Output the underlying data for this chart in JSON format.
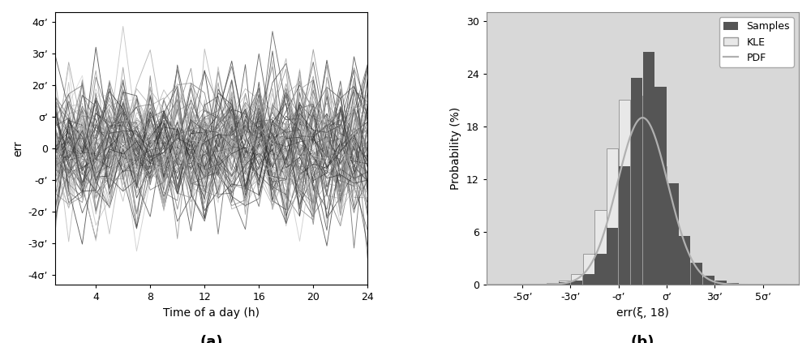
{
  "panel_a": {
    "n_samples": 100,
    "n_time": 24,
    "yticks": [
      -4,
      -3,
      -2,
      -1,
      0,
      1,
      2,
      3,
      4
    ],
    "ytick_labels": [
      "-4σʼ",
      "-3σʼ",
      "-2σʼ",
      "-σʼ",
      "0",
      "σʼ",
      "2σʼ",
      "3σʼ",
      "4σʼ"
    ],
    "xticks": [
      4,
      8,
      12,
      16,
      20,
      24
    ],
    "xlabel": "Time of a day (h)",
    "ylabel": "err",
    "title_label": "(a)",
    "line_width": 0.65,
    "seed": 42
  },
  "panel_b": {
    "bin_edges": [
      -6.0,
      -5.5,
      -5.0,
      -4.5,
      -4.0,
      -3.5,
      -3.0,
      -2.5,
      -2.0,
      -1.5,
      -1.0,
      -0.5,
      0.0,
      0.5,
      1.0,
      1.5,
      2.0,
      2.5,
      3.0,
      3.5,
      4.0,
      4.5,
      5.0,
      5.5,
      6.0
    ],
    "samples_heights": [
      0,
      0,
      0,
      0,
      0,
      0.3,
      0.5,
      1.2,
      3.5,
      6.5,
      13.5,
      23.5,
      26.5,
      22.5,
      11.5,
      5.5,
      2.5,
      1.0,
      0.5,
      0.2,
      0.1,
      0,
      0,
      0
    ],
    "kle_heights": [
      0,
      0,
      0,
      0,
      0.2,
      0.5,
      1.2,
      3.5,
      8.5,
      15.5,
      21.0,
      21.5,
      21.0,
      13.5,
      5.5,
      2.5,
      0.8,
      0.3,
      0.1,
      0.05,
      0,
      0,
      0,
      0
    ],
    "xtick_positions": [
      -5,
      -3,
      -1,
      1,
      3,
      5
    ],
    "xtick_labels": [
      "-5σʼ",
      "-3σʼ",
      "-σʼ",
      "σʼ",
      "3σʼ",
      "5σʼ"
    ],
    "yticks": [
      0,
      6,
      12,
      18,
      24,
      30
    ],
    "xlabel": "err(ξ, 18)",
    "ylabel": "Probability (%)",
    "title_label": "(b)",
    "bar_width": 0.48,
    "samples_color": "#555555",
    "kle_color": "#e8e8e8",
    "kle_edge_color": "#999999",
    "pdf_color": "#b0b0b0",
    "bg_color": "#d8d8d8",
    "ylim": [
      0,
      31
    ],
    "xlim": [
      -6.5,
      6.5
    ],
    "pdf_sigma": 1.05
  }
}
